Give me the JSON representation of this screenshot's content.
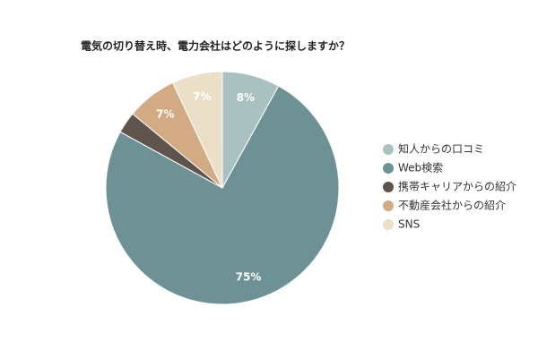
{
  "chart_data": {
    "type": "pie",
    "title": "電気の切り替え時、電力会社はどのように探しますか？",
    "categories": [
      "知人からの口コミ",
      "Web検索",
      "携帯キャリアからの紹介",
      "不動産会社からの紹介",
      "SNS"
    ],
    "values": [
      8,
      75,
      3,
      7,
      7
    ],
    "value_labels": [
      "8%",
      "75%",
      null,
      "7%",
      "7%"
    ],
    "colors": [
      "#a9c1c1",
      "#6e9195",
      "#5f544d",
      "#d2aa84",
      "#ecdfc7"
    ],
    "legend": "right"
  }
}
